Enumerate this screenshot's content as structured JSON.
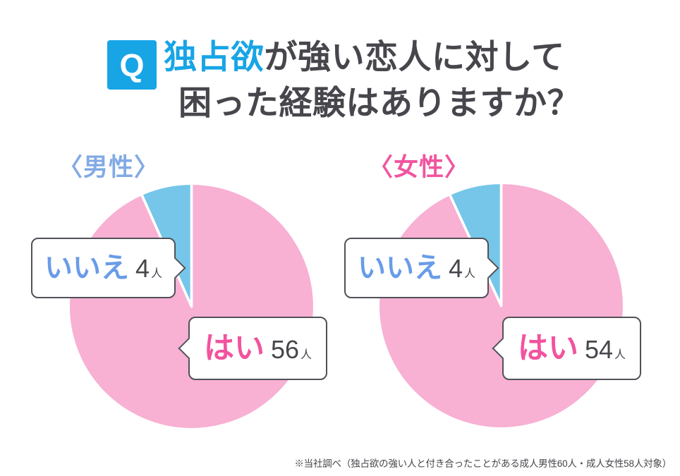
{
  "title": {
    "q_badge": "Q",
    "highlight": "独占欲",
    "line1_rest": "が強い恋人に対して",
    "line2": "困った経験はありますか？"
  },
  "footnote": "※当社調べ（独占欲の強い人と付き合ったことがある成人男性60人・成人女性58人対象）",
  "unit_people": "人",
  "colors": {
    "accent_cyan": "#17A5E6",
    "text_dark": "#46464C",
    "pie_yes_pink": "#F8B0D3",
    "pie_no_blue": "#75C6E9",
    "male_label_blue": "#82AAE4",
    "female_label_pink": "#F2549E",
    "yes_text_pink": "#F2539E",
    "no_text_blue": "#699CE8"
  },
  "chart_data": [
    {
      "type": "pie",
      "title": "〈男性〉",
      "labels": [
        "はい",
        "いいえ"
      ],
      "values": [
        56,
        4
      ],
      "unit": "人",
      "colors": [
        "#F8B0D3",
        "#75C6E9"
      ],
      "start_angle_deg": 0,
      "direction": "clockwise",
      "legend_position": "callout-bubbles"
    },
    {
      "type": "pie",
      "title": "〈女性〉",
      "labels": [
        "はい",
        "いいえ"
      ],
      "values": [
        54,
        4
      ],
      "unit": "人",
      "colors": [
        "#F8B0D3",
        "#75C6E9"
      ],
      "start_angle_deg": 0,
      "direction": "clockwise",
      "legend_position": "callout-bubbles"
    }
  ]
}
